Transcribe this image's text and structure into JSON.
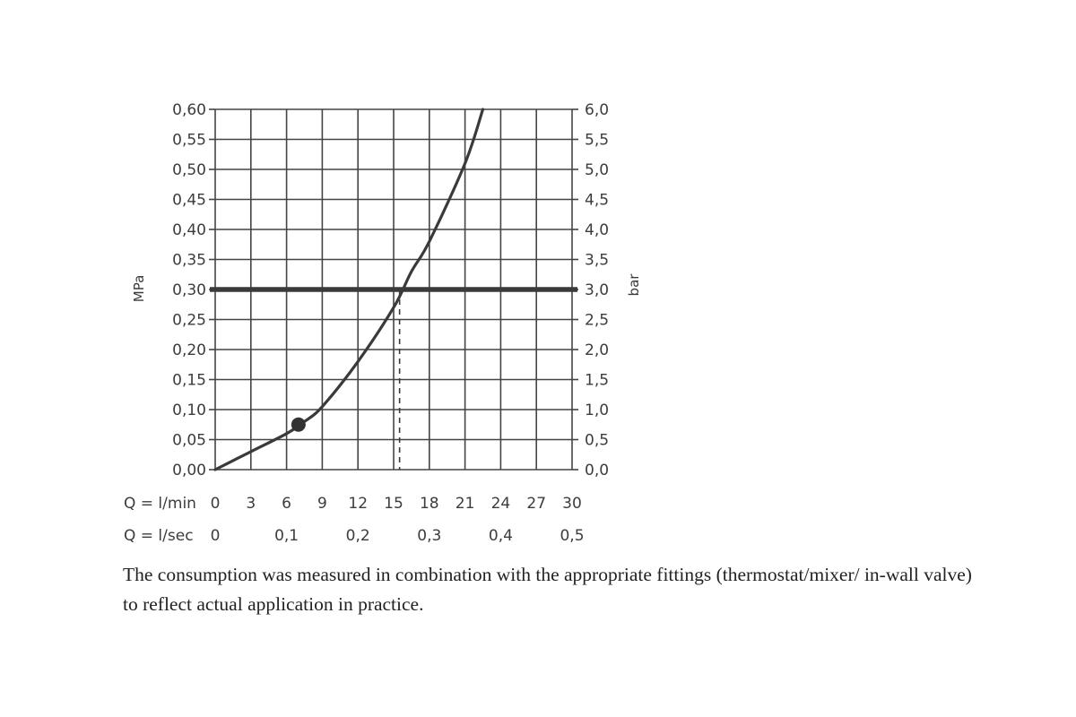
{
  "chart_data": {
    "type": "line",
    "ylabel_left": "MPa",
    "ylabel_right": "bar",
    "y_left_ticks": [
      "0,00",
      "0,05",
      "0,10",
      "0,15",
      "0,20",
      "0,25",
      "0,30",
      "0,35",
      "0,40",
      "0,45",
      "0,50",
      "0,55",
      "0,60"
    ],
    "y_right_ticks": [
      "0,0",
      "0,5",
      "1,0",
      "1,5",
      "2,0",
      "2,5",
      "3,0",
      "3,5",
      "4,0",
      "4,5",
      "5,0",
      "5,5",
      "6,0"
    ],
    "ylim_mpa": [
      0,
      0.6
    ],
    "x_primary": {
      "label": "Q = l/min",
      "ticks": [
        "0",
        "3",
        "6",
        "9",
        "12",
        "15",
        "18",
        "21",
        "24",
        "27",
        "30"
      ]
    },
    "x_secondary": {
      "label": "Q = l/sec",
      "ticks": [
        "0",
        "0,1",
        "0,2",
        "0,3",
        "0,4",
        "0,5"
      ]
    },
    "xlim_lmin": [
      0,
      30
    ],
    "grid": true,
    "series": [
      {
        "x": [
          0,
          3,
          6,
          7.5,
          9,
          12,
          15,
          16.5,
          18,
          21,
          22.5
        ],
        "y": [
          0.0,
          0.03,
          0.06,
          0.08,
          0.105,
          0.18,
          0.27,
          0.33,
          0.38,
          0.51,
          0.6
        ]
      }
    ],
    "marker": {
      "x": 7,
      "y": 0.075
    },
    "reference_line": {
      "y": 0.3
    },
    "drop_line": {
      "x": 15.5,
      "y": 0.3
    }
  },
  "caption": "The consumption was measured in combination with the appropriate fittings (thermostat/mixer/ in-wall valve) to reflect actual application in practice."
}
